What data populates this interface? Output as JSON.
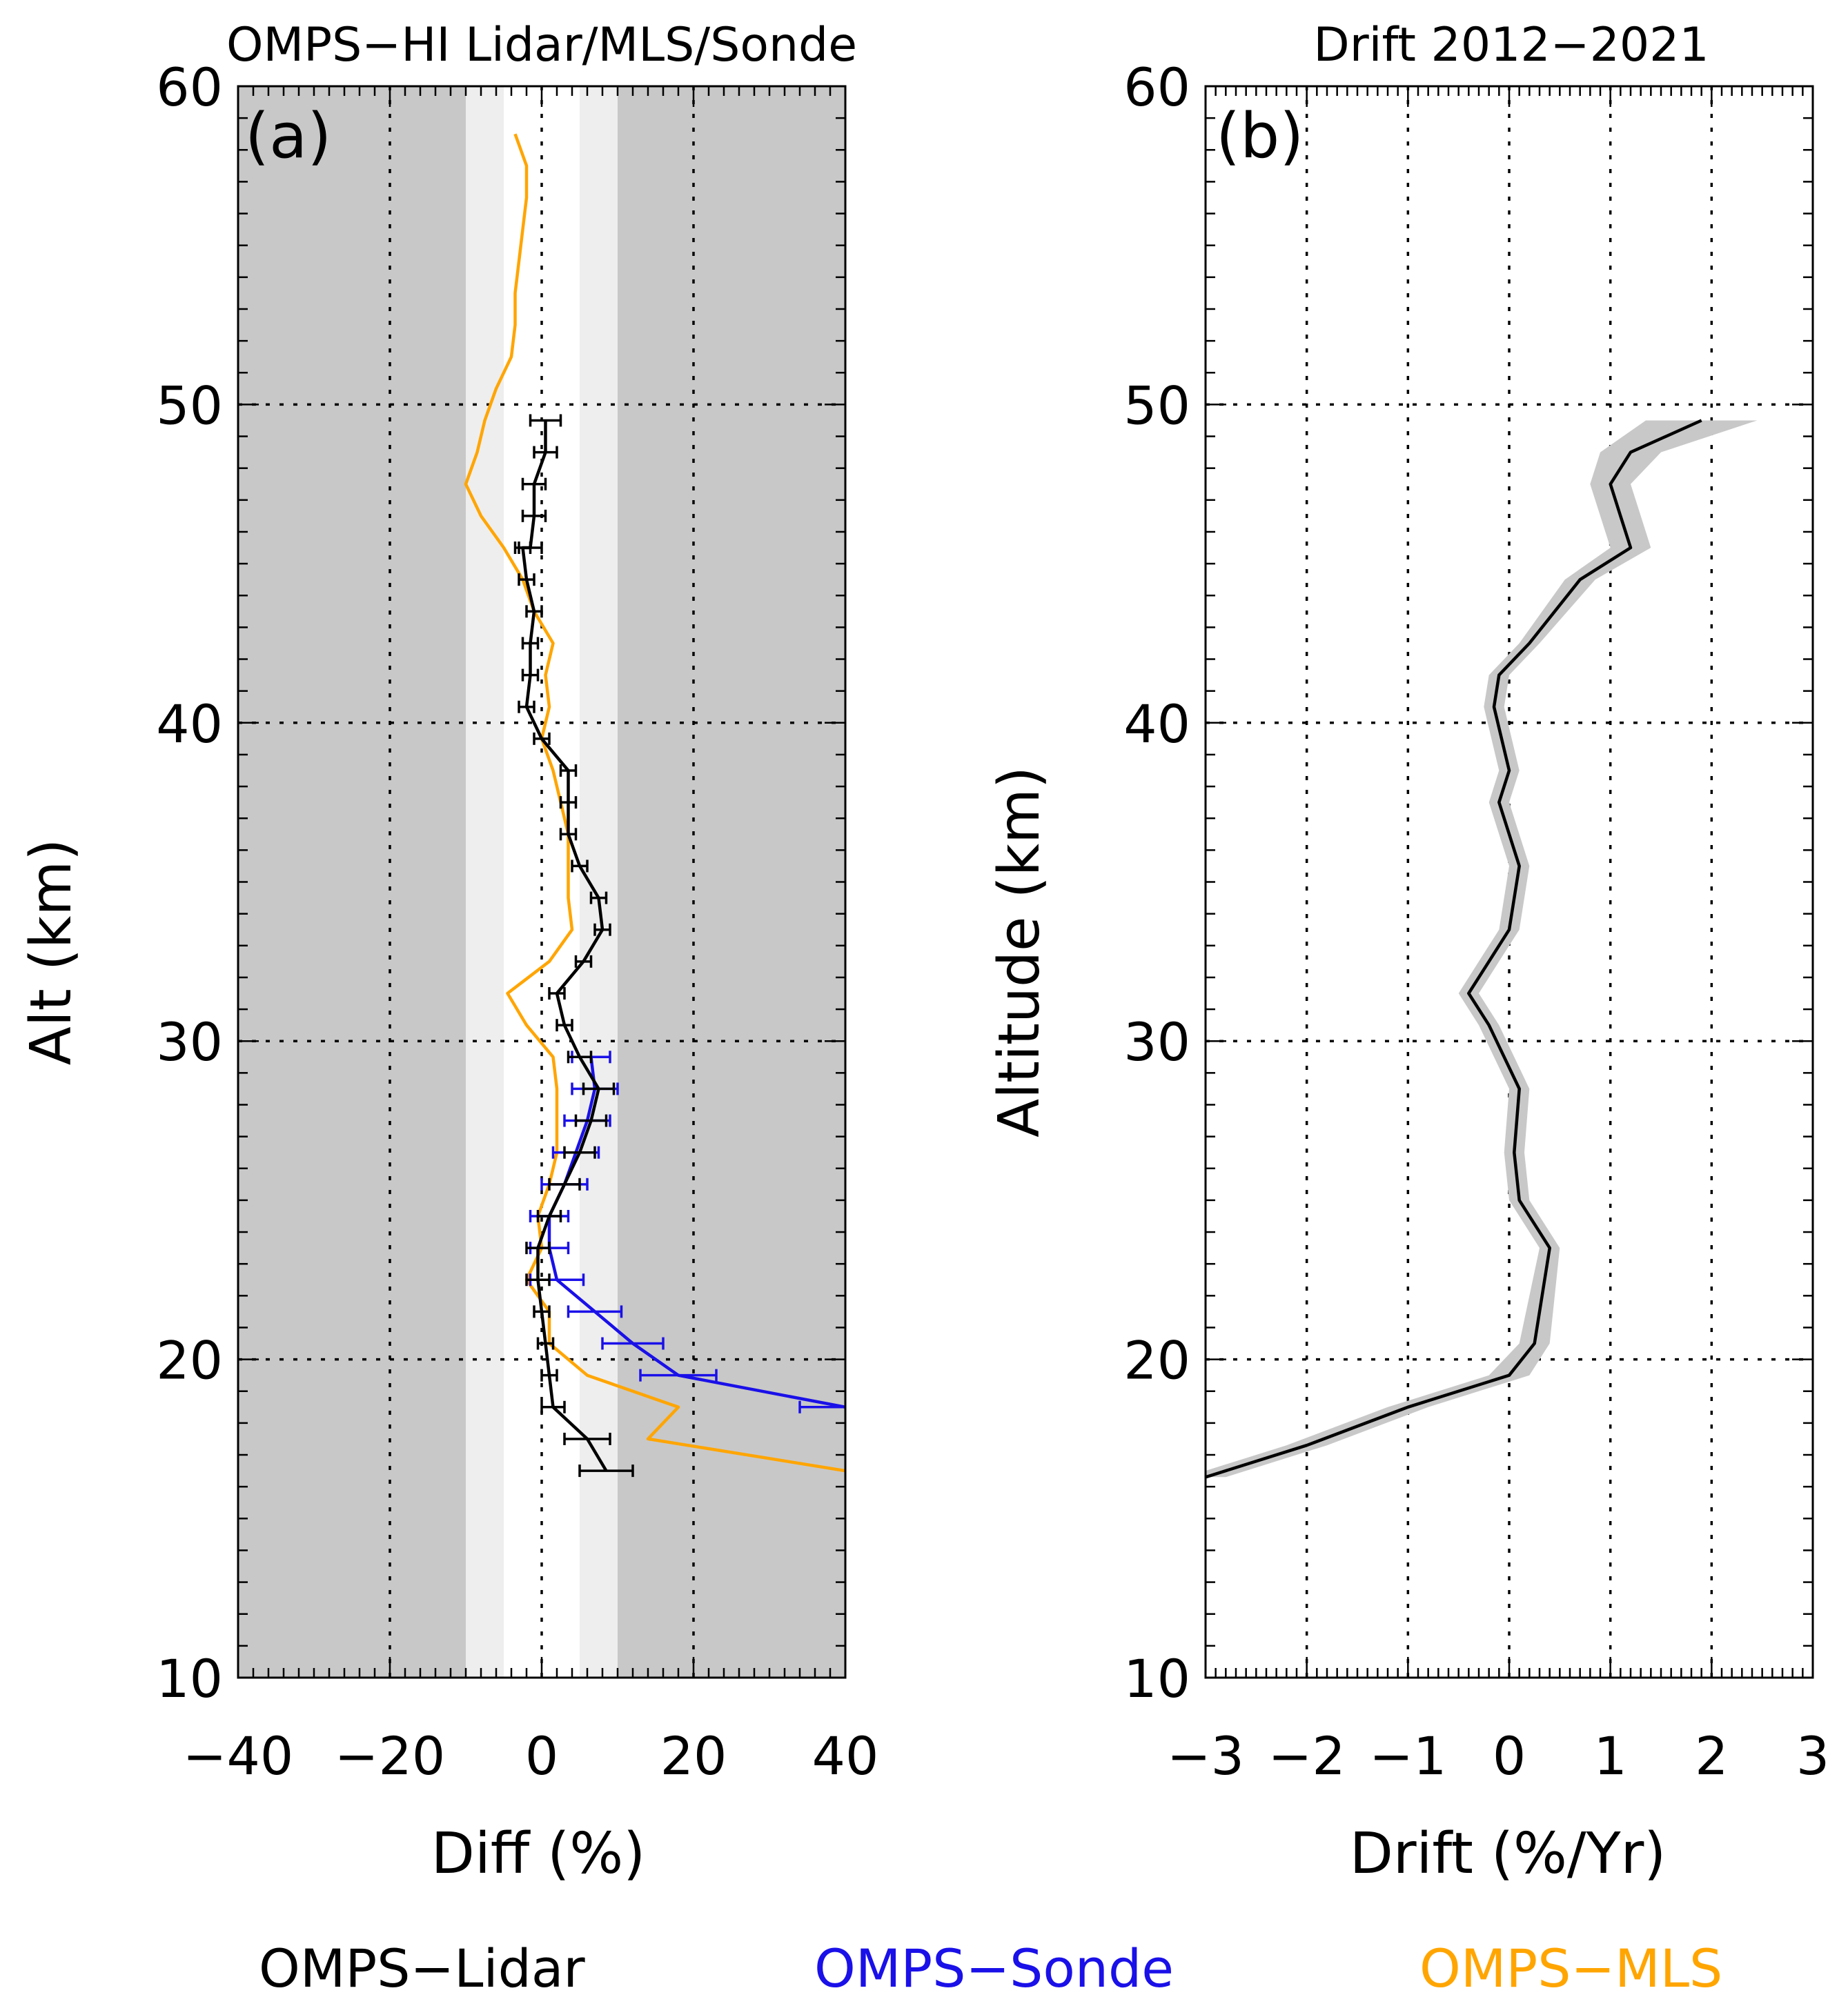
{
  "chart_data": [
    {
      "panel": "a",
      "type": "line",
      "title": "OMPS−HI Lidar/MLS/Sonde",
      "panel_label": "(a)",
      "xlabel": "Diff (%)",
      "ylabel": "Alt (km)",
      "xlim": [
        -40,
        40
      ],
      "ylim": [
        10,
        60
      ],
      "xticks": [
        -40,
        -20,
        0,
        20,
        40
      ],
      "yticks": [
        10,
        20,
        30,
        40,
        50,
        60
      ],
      "grid": true,
      "shading": {
        "dark_outside": 10,
        "light_band_between": [
          5,
          10
        ],
        "colors": {
          "dark": "#c8c8c8",
          "light": "#eeeeee"
        }
      },
      "series": [
        {
          "name": "OMPS−Lidar",
          "color": "#000000",
          "error_bars": true,
          "points": [
            [
              0.5,
              49.5,
              2
            ],
            [
              0.5,
              48.5,
              1.5
            ],
            [
              -1,
              47.5,
              1.5
            ],
            [
              -1,
              46.5,
              1.5
            ],
            [
              -1.5,
              45.5,
              1.5
            ],
            [
              -2.5,
              45.5,
              1
            ],
            [
              -2,
              44.5,
              1
            ],
            [
              -1,
              43.5,
              1
            ],
            [
              -1.5,
              42.5,
              1
            ],
            [
              -1.5,
              41.5,
              1
            ],
            [
              -2,
              40.5,
              1
            ],
            [
              0,
              39.5,
              1
            ],
            [
              3.5,
              38.5,
              1
            ],
            [
              3.5,
              37.5,
              1
            ],
            [
              3.5,
              36.5,
              1
            ],
            [
              5,
              35.5,
              1
            ],
            [
              7.5,
              34.5,
              1
            ],
            [
              8,
              33.5,
              1
            ],
            [
              5.5,
              32.5,
              1
            ],
            [
              2,
              31.5,
              1
            ],
            [
              3,
              30.5,
              1
            ],
            [
              5,
              29.5,
              1.5
            ],
            [
              7.5,
              28.5,
              2
            ],
            [
              6.5,
              27.5,
              2
            ],
            [
              5,
              26.5,
              2
            ],
            [
              3,
              25.5,
              2
            ],
            [
              1,
              24.5,
              1.5
            ],
            [
              -0.5,
              23.5,
              1.5
            ],
            [
              -0.5,
              22.5,
              1.5
            ],
            [
              0,
              21.5,
              1
            ],
            [
              0.5,
              20.5,
              1
            ],
            [
              1,
              19.5,
              1
            ],
            [
              1.5,
              18.5,
              1.5
            ],
            [
              6,
              17.5,
              3
            ],
            [
              8.5,
              16.5,
              3.5
            ]
          ]
        },
        {
          "name": "OMPS−Sonde",
          "color": "#1a10e8",
          "error_bars": true,
          "points": [
            [
              6.5,
              29.5,
              2.5
            ],
            [
              7,
              28.5,
              3
            ],
            [
              6,
              27.5,
              3
            ],
            [
              4.5,
              26.5,
              3
            ],
            [
              3,
              25.5,
              3
            ],
            [
              1,
              24.5,
              2.5
            ],
            [
              1,
              23.5,
              2.5
            ],
            [
              2,
              22.5,
              3.5
            ],
            [
              7,
              21.5,
              3.5
            ],
            [
              12,
              20.5,
              4
            ],
            [
              18,
              19.5,
              5
            ],
            [
              40,
              18.5,
              6
            ]
          ]
        },
        {
          "name": "OMPS−MLS",
          "color": "#ffa500",
          "error_bars": false,
          "points": [
            [
              -3.5,
              58.5
            ],
            [
              -2,
              57.5
            ],
            [
              -2,
              56.5
            ],
            [
              -2.5,
              55.5
            ],
            [
              -3,
              54.5
            ],
            [
              -3.5,
              53.5
            ],
            [
              -3.5,
              52.5
            ],
            [
              -4,
              51.5
            ],
            [
              -6,
              50.5
            ],
            [
              -7.5,
              49.5
            ],
            [
              -8.5,
              48.5
            ],
            [
              -10,
              47.5
            ],
            [
              -8,
              46.5
            ],
            [
              -5,
              45.5
            ],
            [
              -2.5,
              44.5
            ],
            [
              -1,
              43.5
            ],
            [
              1.5,
              42.5
            ],
            [
              0.5,
              41.5
            ],
            [
              1,
              40.5
            ],
            [
              0,
              39.5
            ],
            [
              1.5,
              38.5
            ],
            [
              2.5,
              37.5
            ],
            [
              3.5,
              36.5
            ],
            [
              3.5,
              35.5
            ],
            [
              3.5,
              34.5
            ],
            [
              4,
              33.5
            ],
            [
              1,
              32.5
            ],
            [
              -4.5,
              31.5
            ],
            [
              -2,
              30.5
            ],
            [
              1.5,
              29.5
            ],
            [
              2,
              28.5
            ],
            [
              2,
              27.5
            ],
            [
              2,
              26.5
            ],
            [
              1,
              25.5
            ],
            [
              -0.5,
              24.5
            ],
            [
              0,
              23.5
            ],
            [
              -2,
              22.5
            ],
            [
              1,
              21.5
            ],
            [
              1,
              20.5
            ],
            [
              6,
              19.5
            ],
            [
              18,
              18.5
            ],
            [
              14,
              17.5
            ],
            [
              40,
              16.5
            ]
          ]
        }
      ]
    },
    {
      "panel": "b",
      "type": "line",
      "title": "Drift 2012−2021",
      "panel_label": "(b)",
      "xlabel": "Drift (%/Yr)",
      "ylabel": "Altitude (km)",
      "xlim": [
        -3,
        3
      ],
      "ylim": [
        10,
        60
      ],
      "xticks": [
        -3,
        -2,
        -1,
        0,
        1,
        2,
        3
      ],
      "yticks": [
        10,
        20,
        30,
        40,
        50,
        60
      ],
      "grid": true,
      "series": [
        {
          "color": "#000000",
          "band_color": "#c8c8c8",
          "points": [
            [
              1.9,
              49.5,
              0.55
            ],
            [
              1.2,
              48.5,
              0.3
            ],
            [
              1.0,
              47.5,
              0.2
            ],
            [
              1.1,
              46.5,
              0.2
            ],
            [
              1.2,
              45.5,
              0.2
            ],
            [
              0.7,
              44.5,
              0.15
            ],
            [
              0.2,
              42.5,
              0.1
            ],
            [
              -0.1,
              41.5,
              0.1
            ],
            [
              -0.15,
              40.5,
              0.1
            ],
            [
              0,
              38.5,
              0.1
            ],
            [
              -0.1,
              37.5,
              0.1
            ],
            [
              0.1,
              35.5,
              0.1
            ],
            [
              0,
              33.5,
              0.1
            ],
            [
              -0.2,
              32.5,
              0.1
            ],
            [
              -0.4,
              31.5,
              0.1
            ],
            [
              -0.2,
              30.5,
              0.1
            ],
            [
              0.1,
              28.5,
              0.1
            ],
            [
              0.05,
              26.5,
              0.1
            ],
            [
              0.1,
              25.0,
              0.1
            ],
            [
              0.4,
              23.5,
              0.1
            ],
            [
              0.25,
              20.5,
              0.15
            ],
            [
              0,
              19.5,
              0.2
            ],
            [
              -1.0,
              18.5,
              0.2
            ],
            [
              -2.0,
              17.3,
              0.2
            ],
            [
              -3.0,
              16.3,
              0.2
            ]
          ]
        }
      ]
    }
  ],
  "legend": [
    {
      "label": "OMPS−Lidar",
      "color": "#000000"
    },
    {
      "label": "OMPS−Sonde",
      "color": "#1a10e8"
    },
    {
      "label": "OMPS−MLS",
      "color": "#ffa500"
    }
  ]
}
